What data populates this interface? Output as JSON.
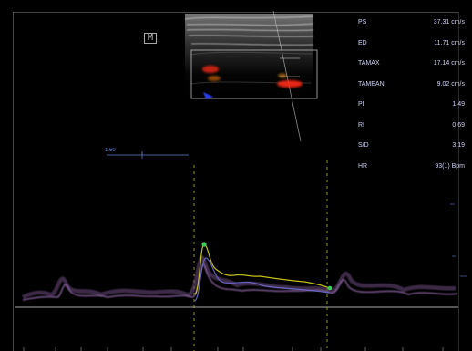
{
  "mode_icon": {
    "label": "M",
    "icon": "m-mode-icon"
  },
  "measurements": [
    {
      "label": "PS",
      "value": "37.31 cm/s"
    },
    {
      "label": "ED",
      "value": "11.71 cm/s"
    },
    {
      "label": "TAMAX",
      "value": "17.14 cm/s"
    },
    {
      "label": "TAMEAN",
      "value": "9.02 cm/s"
    },
    {
      "label": "PI",
      "value": "1.49"
    },
    {
      "label": "RI",
      "value": "0.69"
    },
    {
      "label": "S/D",
      "value": "3.19"
    },
    {
      "label": "HR",
      "value": "93(1) Bpm"
    }
  ],
  "baseline": {
    "label": "-1.60"
  },
  "colors": {
    "background": "#000000",
    "measurement_text": "#d8dcff",
    "baseline_marker": "#6f8fe8",
    "doppler_trace": "#7b5a88",
    "envelope_trace": "#d6d41c",
    "cursor_line": "#b8b332",
    "marker_green": "#38d05a",
    "flow_red": "#ff3018",
    "flow_blue": "#2f46ff"
  }
}
